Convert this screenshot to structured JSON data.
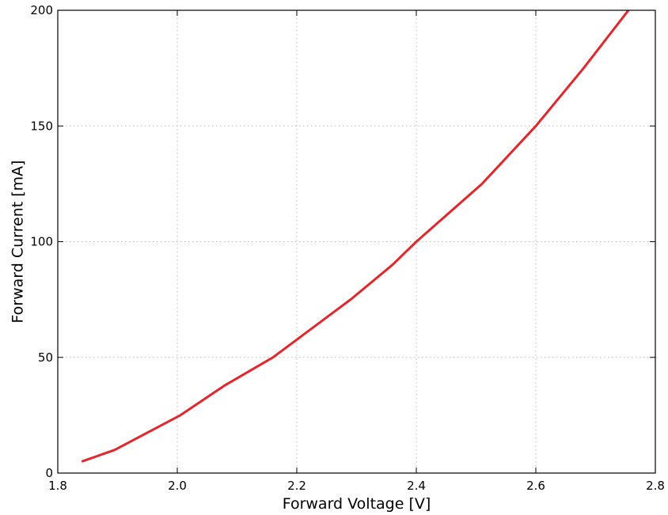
{
  "chart_data": {
    "type": "line",
    "xlabel": "Forward Voltage [V]",
    "ylabel": "Forward Current [mA]",
    "xlim": [
      1.8,
      2.8
    ],
    "ylim": [
      0,
      200
    ],
    "xticks": [
      1.8,
      2.0,
      2.2,
      2.4,
      2.6,
      2.8
    ],
    "xtick_labels": [
      "1.8",
      "2.0",
      "2.2",
      "2.4",
      "2.6",
      "2.8"
    ],
    "yticks": [
      0,
      50,
      100,
      150,
      200
    ],
    "ytick_labels": [
      "0",
      "50",
      "100",
      "150",
      "200"
    ],
    "grid": true,
    "series": [
      {
        "color": "#e3262b",
        "x": [
          1.84,
          1.895,
          2.005,
          2.08,
          2.16,
          2.29,
          2.36,
          2.4,
          2.51,
          2.6,
          2.68,
          2.755
        ],
        "y": [
          5,
          10,
          25,
          38,
          50,
          75,
          90,
          100,
          125,
          150,
          175,
          200
        ]
      }
    ]
  }
}
